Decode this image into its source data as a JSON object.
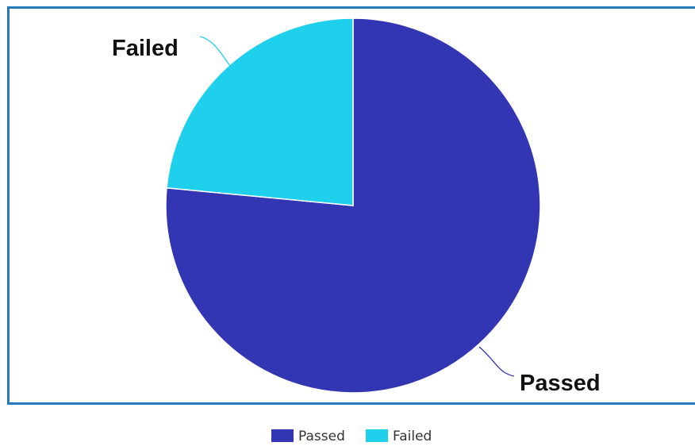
{
  "chart_data": {
    "type": "pie",
    "slices": [
      {
        "label": "Passed",
        "value": 76.5,
        "color": "#3336b2"
      },
      {
        "label": "Failed",
        "value": 23.5,
        "color": "#1ed0ec"
      }
    ],
    "legend": {
      "placement": "bottom-center",
      "items": [
        "Passed",
        "Failed"
      ]
    }
  },
  "colors": {
    "frame_border": "#2779bd",
    "leader_passed": "#3336b2",
    "leader_failed": "#1ed0ec"
  }
}
